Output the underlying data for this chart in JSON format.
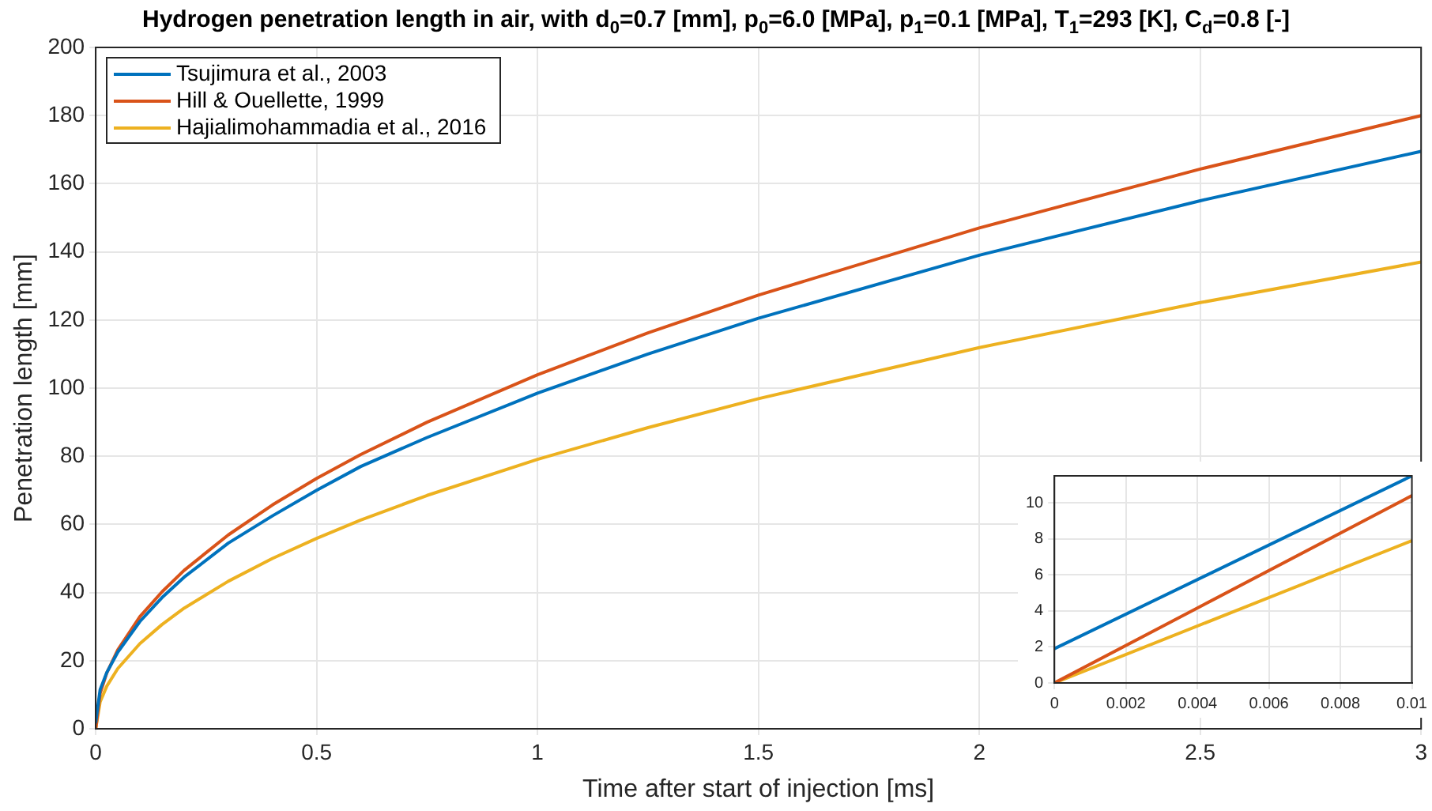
{
  "chart_data": [
    {
      "type": "line",
      "title": "Hydrogen penetration length in air, with d$_{0}$=0.7 [mm], p$_{0}$=6.0 [MPa], p$_{1}$=0.1 [MPa], T$_{1}$=293 [K], C$_{d}$=0.8 [-]",
      "xlabel": "Time after start of injection [ms]",
      "ylabel": "Penetration length [mm]",
      "x": [
        0,
        0.01,
        0.025,
        0.05,
        0.1,
        0.15,
        0.2,
        0.3,
        0.4,
        0.5,
        0.6,
        0.75,
        1,
        1.25,
        1.5,
        2,
        2.5,
        3
      ],
      "series": [
        {
          "name": "Tsujimura et al., 2003",
          "color": "#0072bd",
          "values": [
            1.9,
            11.5,
            16.5,
            22.5,
            31.5,
            38.5,
            44.5,
            54.5,
            62.5,
            70,
            77,
            85.5,
            98.5,
            110,
            120.5,
            139,
            155,
            169.5
          ]
        },
        {
          "name": "Hill & Ouellette, 1999",
          "color": "#d95319",
          "values": [
            0,
            10.4,
            16.4,
            23.2,
            32.9,
            40.2,
            46.5,
            56.9,
            65.7,
            73.5,
            80.5,
            90,
            103.9,
            116.2,
            127.3,
            147,
            164.3,
            180
          ]
        },
        {
          "name": "Hajialimohammadia et al., 2016",
          "color": "#edb120",
          "values": [
            0,
            7.9,
            12.5,
            17.7,
            25,
            30.6,
            35.4,
            43.3,
            50,
            55.9,
            61.3,
            68.5,
            79.1,
            88.4,
            96.9,
            111.9,
            125.1,
            137
          ]
        }
      ],
      "xlim": [
        0,
        3
      ],
      "xticks": [
        0,
        0.5,
        1,
        1.5,
        2,
        2.5,
        3
      ],
      "ylim": [
        0,
        200
      ],
      "yticks": [
        0,
        20,
        40,
        60,
        80,
        100,
        120,
        140,
        160,
        180,
        200
      ],
      "grid": true,
      "legend": "top left"
    },
    {
      "type": "line",
      "x": [
        0,
        0.01
      ],
      "series": [
        {
          "color": "#0072bd",
          "values": [
            1.9,
            11.5
          ]
        },
        {
          "color": "#d95319",
          "values": [
            0,
            10.4
          ]
        },
        {
          "color": "#edb120",
          "values": [
            0,
            7.9
          ]
        }
      ],
      "xlim": [
        0,
        0.01
      ],
      "xticks": [
        0,
        0.002,
        0.004,
        0.006,
        0.008,
        0.01
      ],
      "ylim": [
        0,
        11.5
      ],
      "yticks": [
        0,
        2,
        4,
        6,
        8,
        10
      ],
      "grid": true
    }
  ]
}
